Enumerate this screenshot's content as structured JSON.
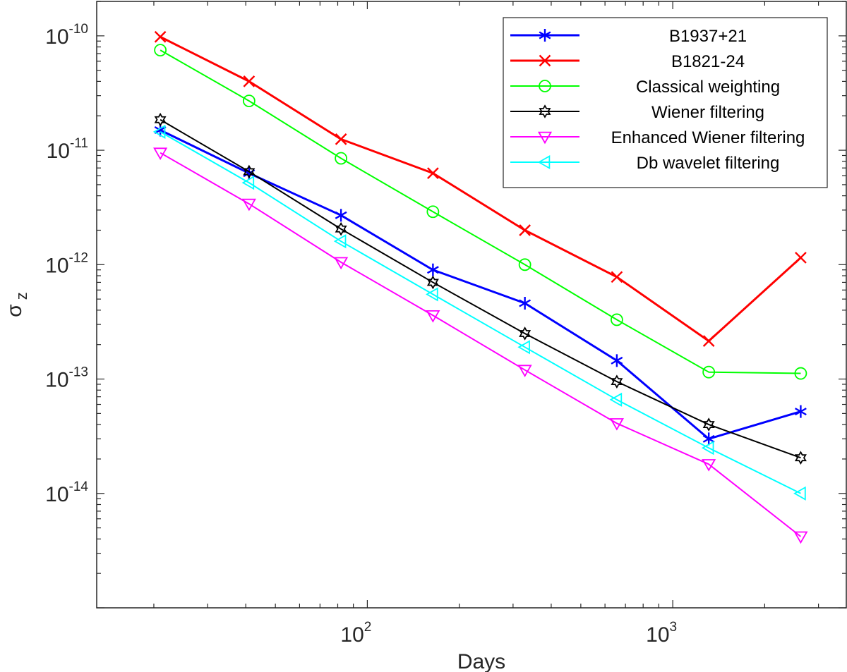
{
  "chart_data": {
    "type": "line",
    "scale": {
      "x": "log",
      "y": "log"
    },
    "xlabel": "Days",
    "ylabel": "σ",
    "ylabel_subscript": "z",
    "xlim": [
      13,
      3700
    ],
    "ylim": [
      1e-15,
      2e-10
    ],
    "x_ticks": [
      {
        "value": 100,
        "base": "10",
        "exp": "2"
      },
      {
        "value": 1000,
        "base": "10",
        "exp": "3"
      }
    ],
    "y_ticks": [
      {
        "value": 1e-14,
        "base": "10",
        "exp": "-14"
      },
      {
        "value": 1e-13,
        "base": "10",
        "exp": "-13"
      },
      {
        "value": 1e-12,
        "base": "10",
        "exp": "-12"
      },
      {
        "value": 1e-11,
        "base": "10",
        "exp": "-11"
      },
      {
        "value": 1e-10,
        "base": "10",
        "exp": "-10"
      }
    ],
    "legend_position": "top-right",
    "x": [
      21,
      41,
      82,
      164,
      328,
      656,
      1312,
      2624
    ],
    "series": [
      {
        "name": "B1937+21",
        "color": "#0000ff",
        "marker": "asterisk",
        "emphasis": true,
        "values": [
          1.5e-11,
          6.3e-12,
          2.7e-12,
          9e-13,
          4.6e-13,
          1.45e-13,
          3e-14,
          5.2e-14
        ]
      },
      {
        "name": "B1821-24",
        "color": "#ff0000",
        "marker": "x",
        "emphasis": true,
        "values": [
          9.8e-11,
          4e-11,
          1.25e-11,
          6.3e-12,
          2e-12,
          7.8e-13,
          2.15e-13,
          1.15e-12
        ]
      },
      {
        "name": "Classical weighting",
        "color": "#00ff00",
        "marker": "circle",
        "emphasis": false,
        "values": [
          7.5e-11,
          2.7e-11,
          8.5e-12,
          2.9e-12,
          1e-12,
          3.3e-13,
          1.15e-13,
          1.12e-13
        ]
      },
      {
        "name": "Wiener filtering",
        "color": "#000000",
        "marker": "hexagram",
        "emphasis": false,
        "values": [
          1.85e-11,
          6.5e-12,
          2.05e-12,
          7e-13,
          2.5e-13,
          9.5e-14,
          4e-14,
          2.05e-14
        ]
      },
      {
        "name": "Enhanced Wiener filtering",
        "color": "#ff00ff",
        "marker": "triangle-down",
        "emphasis": false,
        "values": [
          9.5e-12,
          3.4e-12,
          1.05e-12,
          3.6e-13,
          1.2e-13,
          4.1e-14,
          1.8e-14,
          4.2e-15
        ]
      },
      {
        "name": "Db wavelet filtering",
        "color": "#00ffff",
        "marker": "triangle-left",
        "emphasis": false,
        "values": [
          1.45e-11,
          5.2e-12,
          1.6e-12,
          5.5e-13,
          1.9e-13,
          6.6e-14,
          2.5e-14,
          1e-14
        ]
      }
    ]
  }
}
